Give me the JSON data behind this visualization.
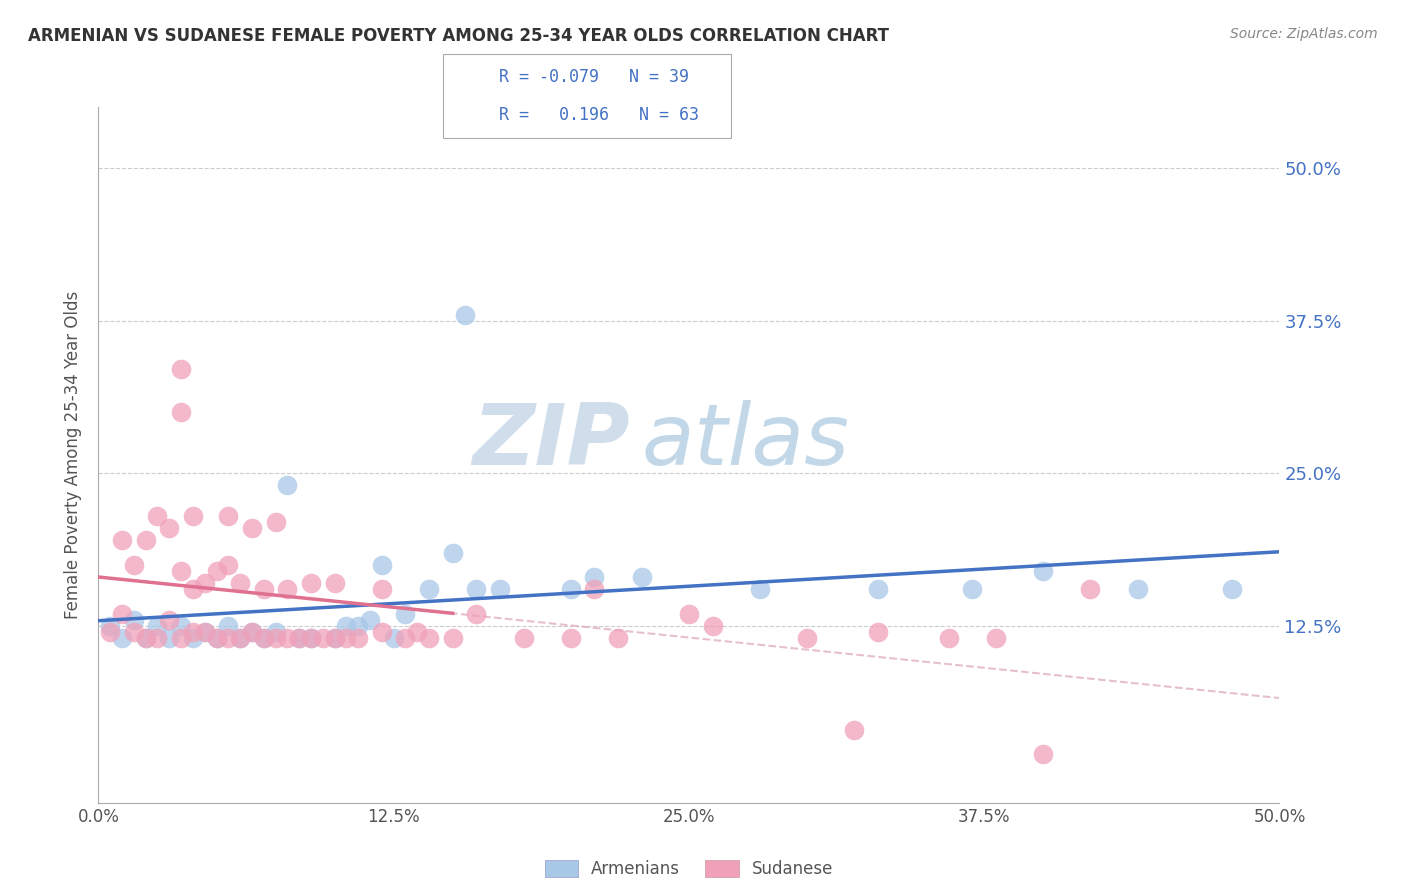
{
  "title": "ARMENIAN VS SUDANESE FEMALE POVERTY AMONG 25-34 YEAR OLDS CORRELATION CHART",
  "source": "Source: ZipAtlas.com",
  "ylabel": "Female Poverty Among 25-34 Year Olds",
  "xlim": [
    0.0,
    0.5
  ],
  "ylim": [
    -0.02,
    0.55
  ],
  "xtick_vals": [
    0.0,
    0.125,
    0.25,
    0.375,
    0.5
  ],
  "xtick_labels": [
    "0.0%",
    "12.5%",
    "25.0%",
    "37.5%",
    "50.0%"
  ],
  "ytick_vals": [
    0.125,
    0.25,
    0.375,
    0.5
  ],
  "ytick_labels": [
    "12.5%",
    "25.0%",
    "37.5%",
    "50.0%"
  ],
  "armenian_color": "#a8c8e8",
  "sudanese_color": "#f0a0b8",
  "armenian_line_color": "#4472c4",
  "sudanese_line_color": "#e07090",
  "sudanese_dash_color": "#e0b0c0",
  "armenian_R": "-0.079",
  "armenian_N": "39",
  "sudanese_R": "0.196",
  "sudanese_N": "63",
  "armenian_points": [
    [
      0.005,
      0.125
    ],
    [
      0.01,
      0.115
    ],
    [
      0.015,
      0.13
    ],
    [
      0.02,
      0.115
    ],
    [
      0.025,
      0.125
    ],
    [
      0.03,
      0.115
    ],
    [
      0.035,
      0.125
    ],
    [
      0.04,
      0.115
    ],
    [
      0.045,
      0.12
    ],
    [
      0.05,
      0.115
    ],
    [
      0.055,
      0.125
    ],
    [
      0.06,
      0.115
    ],
    [
      0.065,
      0.12
    ],
    [
      0.07,
      0.115
    ],
    [
      0.075,
      0.12
    ],
    [
      0.08,
      0.24
    ],
    [
      0.085,
      0.115
    ],
    [
      0.09,
      0.115
    ],
    [
      0.1,
      0.115
    ],
    [
      0.105,
      0.125
    ],
    [
      0.11,
      0.125
    ],
    [
      0.115,
      0.13
    ],
    [
      0.12,
      0.175
    ],
    [
      0.125,
      0.115
    ],
    [
      0.13,
      0.135
    ],
    [
      0.14,
      0.155
    ],
    [
      0.15,
      0.185
    ],
    [
      0.155,
      0.38
    ],
    [
      0.16,
      0.155
    ],
    [
      0.17,
      0.155
    ],
    [
      0.2,
      0.155
    ],
    [
      0.21,
      0.165
    ],
    [
      0.23,
      0.165
    ],
    [
      0.28,
      0.155
    ],
    [
      0.33,
      0.155
    ],
    [
      0.37,
      0.155
    ],
    [
      0.4,
      0.17
    ],
    [
      0.44,
      0.155
    ],
    [
      0.48,
      0.155
    ]
  ],
  "sudanese_points": [
    [
      0.005,
      0.12
    ],
    [
      0.01,
      0.135
    ],
    [
      0.01,
      0.195
    ],
    [
      0.015,
      0.12
    ],
    [
      0.015,
      0.175
    ],
    [
      0.02,
      0.115
    ],
    [
      0.02,
      0.195
    ],
    [
      0.025,
      0.115
    ],
    [
      0.025,
      0.215
    ],
    [
      0.03,
      0.13
    ],
    [
      0.03,
      0.205
    ],
    [
      0.035,
      0.115
    ],
    [
      0.035,
      0.17
    ],
    [
      0.035,
      0.3
    ],
    [
      0.035,
      0.335
    ],
    [
      0.04,
      0.12
    ],
    [
      0.04,
      0.155
    ],
    [
      0.04,
      0.215
    ],
    [
      0.045,
      0.12
    ],
    [
      0.045,
      0.16
    ],
    [
      0.05,
      0.115
    ],
    [
      0.05,
      0.17
    ],
    [
      0.055,
      0.115
    ],
    [
      0.055,
      0.175
    ],
    [
      0.055,
      0.215
    ],
    [
      0.06,
      0.115
    ],
    [
      0.06,
      0.16
    ],
    [
      0.065,
      0.12
    ],
    [
      0.065,
      0.205
    ],
    [
      0.07,
      0.115
    ],
    [
      0.07,
      0.155
    ],
    [
      0.075,
      0.115
    ],
    [
      0.075,
      0.21
    ],
    [
      0.08,
      0.115
    ],
    [
      0.08,
      0.155
    ],
    [
      0.085,
      0.115
    ],
    [
      0.09,
      0.115
    ],
    [
      0.09,
      0.16
    ],
    [
      0.095,
      0.115
    ],
    [
      0.1,
      0.115
    ],
    [
      0.1,
      0.16
    ],
    [
      0.105,
      0.115
    ],
    [
      0.11,
      0.115
    ],
    [
      0.12,
      0.12
    ],
    [
      0.12,
      0.155
    ],
    [
      0.13,
      0.115
    ],
    [
      0.135,
      0.12
    ],
    [
      0.14,
      0.115
    ],
    [
      0.15,
      0.115
    ],
    [
      0.16,
      0.135
    ],
    [
      0.18,
      0.115
    ],
    [
      0.2,
      0.115
    ],
    [
      0.21,
      0.155
    ],
    [
      0.22,
      0.115
    ],
    [
      0.25,
      0.135
    ],
    [
      0.26,
      0.125
    ],
    [
      0.3,
      0.115
    ],
    [
      0.32,
      0.04
    ],
    [
      0.33,
      0.12
    ],
    [
      0.36,
      0.115
    ],
    [
      0.38,
      0.115
    ],
    [
      0.4,
      0.02
    ],
    [
      0.42,
      0.155
    ]
  ]
}
